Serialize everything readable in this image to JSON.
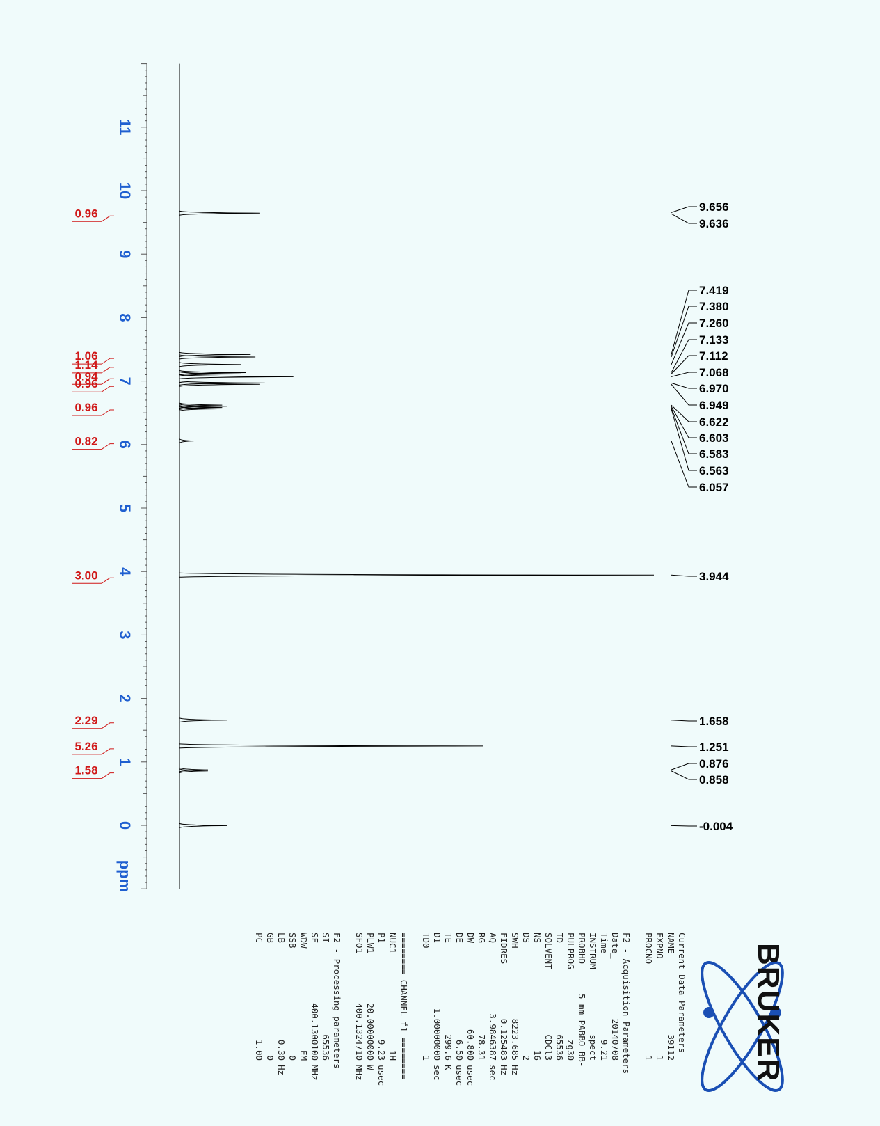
{
  "chart_data": {
    "type": "line",
    "x_unit_label": "ppm",
    "x_range": [
      -1.0,
      12.0
    ],
    "x_ticks": [
      "11",
      "10",
      "9",
      "8",
      "7",
      "6",
      "5",
      "4",
      "3",
      "2",
      "1",
      "0"
    ],
    "peaks": [
      {
        "ppm": 9.646,
        "height": 0.17
      },
      {
        "ppm": 7.419,
        "height": 0.15
      },
      {
        "ppm": 7.38,
        "height": 0.16
      },
      {
        "ppm": 7.26,
        "height": 0.13
      },
      {
        "ppm": 7.133,
        "height": 0.14
      },
      {
        "ppm": 7.112,
        "height": 0.13
      },
      {
        "ppm": 7.068,
        "height": 0.24
      },
      {
        "ppm": 6.97,
        "height": 0.18
      },
      {
        "ppm": 6.949,
        "height": 0.17
      },
      {
        "ppm": 6.622,
        "height": 0.09
      },
      {
        "ppm": 6.603,
        "height": 0.1
      },
      {
        "ppm": 6.583,
        "height": 0.09
      },
      {
        "ppm": 6.563,
        "height": 0.08
      },
      {
        "ppm": 6.057,
        "height": 0.03
      },
      {
        "ppm": 3.944,
        "height": 1.0
      },
      {
        "ppm": 1.658,
        "height": 0.1
      },
      {
        "ppm": 1.251,
        "height": 0.64
      },
      {
        "ppm": 0.876,
        "height": 0.06
      },
      {
        "ppm": 0.858,
        "height": 0.06
      },
      {
        "ppm": -0.004,
        "height": 0.1
      }
    ],
    "peak_labels": [
      "9.656",
      "9.636",
      "7.419",
      "7.380",
      "7.260",
      "7.133",
      "7.112",
      "7.068",
      "6.970",
      "6.949",
      "6.622",
      "6.603",
      "6.583",
      "6.563",
      "6.057",
      "3.944",
      "1.658",
      "1.251",
      "0.876",
      "0.858",
      "-0.004"
    ],
    "integrals": [
      {
        "ppm": 9.646,
        "label": "0.96"
      },
      {
        "ppm": 7.4,
        "label": "1.06"
      },
      {
        "ppm": 7.26,
        "label": "1.14"
      },
      {
        "ppm": 7.08,
        "label": "0.94"
      },
      {
        "ppm": 6.96,
        "label": "0.96"
      },
      {
        "ppm": 6.59,
        "label": "0.96"
      },
      {
        "ppm": 6.057,
        "label": "0.82"
      },
      {
        "ppm": 3.944,
        "label": "3.00"
      },
      {
        "ppm": 1.658,
        "label": "2.29"
      },
      {
        "ppm": 1.251,
        "label": "5.26"
      },
      {
        "ppm": 0.87,
        "label": "1.58"
      }
    ]
  },
  "colors": {
    "background": "#f0fbfb",
    "axis_text": "#1f5fd0",
    "integral_text": "#d01818",
    "trace": "#000000",
    "logo": "#1a4fb4"
  },
  "params": {
    "block1": [
      {
        "k": "Current Data Parameters",
        "v": "",
        "u": ""
      },
      {
        "k": "NAME",
        "v": "39112",
        "u": ""
      },
      {
        "k": "EXPNO",
        "v": "1",
        "u": ""
      },
      {
        "k": "PROCNO",
        "v": "1",
        "u": ""
      }
    ],
    "block2": [
      {
        "k": "F2 - Acquisition Parameters",
        "v": "",
        "u": ""
      },
      {
        "k": "Date_",
        "v": "20140708",
        "u": ""
      },
      {
        "k": "Time",
        "v": "9.21",
        "u": ""
      },
      {
        "k": "INSTRUM",
        "v": "spect",
        "u": ""
      },
      {
        "k": "PROBHD",
        "v": "5 mm PABBO BB-",
        "u": ""
      },
      {
        "k": "PULPROG",
        "v": "zg30",
        "u": ""
      },
      {
        "k": "TD",
        "v": "65536",
        "u": ""
      },
      {
        "k": "SOLVENT",
        "v": "CDCl3",
        "u": ""
      },
      {
        "k": "NS",
        "v": "16",
        "u": ""
      },
      {
        "k": "DS",
        "v": "2",
        "u": ""
      },
      {
        "k": "SWH",
        "v": "8223.685",
        "u": "Hz"
      },
      {
        "k": "FIDRES",
        "v": "0.125483",
        "u": "Hz"
      },
      {
        "k": "AQ",
        "v": "3.9846387",
        "u": "sec"
      },
      {
        "k": "RG",
        "v": "78.31",
        "u": ""
      },
      {
        "k": "DW",
        "v": "60.800",
        "u": "usec"
      },
      {
        "k": "DE",
        "v": "6.50",
        "u": "usec"
      },
      {
        "k": "TE",
        "v": "299.6",
        "u": "K"
      },
      {
        "k": "D1",
        "v": "1.00000000",
        "u": "sec"
      },
      {
        "k": "TD0",
        "v": "1",
        "u": ""
      }
    ],
    "block3": [
      {
        "k": "======== CHANNEL f1 ========",
        "v": "",
        "u": ""
      },
      {
        "k": "NUC1",
        "v": "1H",
        "u": ""
      },
      {
        "k": "P1",
        "v": "9.23",
        "u": "usec"
      },
      {
        "k": "PLW1",
        "v": "20.00000000",
        "u": "W"
      },
      {
        "k": "SFO1",
        "v": "400.1324710",
        "u": "MHz"
      }
    ],
    "block4": [
      {
        "k": "F2 - Processing parameters",
        "v": "",
        "u": ""
      },
      {
        "k": "SI",
        "v": "65536",
        "u": ""
      },
      {
        "k": "SF",
        "v": "400.1300100",
        "u": "MHz"
      },
      {
        "k": "WDW",
        "v": "EM",
        "u": ""
      },
      {
        "k": "SSB",
        "v": "0",
        "u": ""
      },
      {
        "k": "LB",
        "v": "0.30",
        "u": "Hz"
      },
      {
        "k": "GB",
        "v": "0",
        "u": ""
      },
      {
        "k": "PC",
        "v": "1.00",
        "u": ""
      }
    ]
  },
  "logo": {
    "text": "BRUKER"
  }
}
